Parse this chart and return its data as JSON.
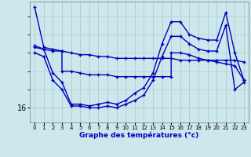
{
  "xlabel": "Graphe des températures (°c)",
  "background_color": "#cce8ec",
  "grid_color": "#aaccd0",
  "line_color": "#0000bb",
  "x_ticks": [
    0,
    1,
    2,
    3,
    4,
    5,
    6,
    7,
    8,
    9,
    10,
    11,
    12,
    13,
    14,
    15,
    16,
    17,
    18,
    19,
    20,
    21,
    22,
    23
  ],
  "ylim": [
    15.2,
    21.8
  ],
  "ytick_val": 16,
  "series1_x": [
    0,
    1,
    2,
    3,
    4,
    5,
    6,
    7,
    8,
    9,
    10,
    11,
    12,
    13,
    14,
    15,
    16,
    17,
    18,
    19,
    20,
    21,
    22,
    23
  ],
  "series1_y": [
    21.5,
    19.3,
    19.2,
    19.1,
    19.0,
    18.9,
    18.9,
    18.8,
    18.8,
    18.7,
    18.7,
    18.7,
    18.7,
    18.7,
    18.7,
    18.7,
    18.6,
    18.6,
    18.6,
    18.6,
    18.6,
    18.6,
    18.6,
    18.5
  ],
  "series2_x": [
    0,
    1,
    2,
    3,
    3,
    4,
    5,
    6,
    7,
    8,
    9,
    10,
    11,
    12,
    13,
    14,
    15,
    15,
    16,
    17,
    18,
    19,
    20,
    21,
    22,
    23
  ],
  "series2_y": [
    19.4,
    19.2,
    19.1,
    19.1,
    18.0,
    18.0,
    17.9,
    17.8,
    17.8,
    17.8,
    17.7,
    17.7,
    17.7,
    17.7,
    17.7,
    17.7,
    17.7,
    19.0,
    19.0,
    18.9,
    18.7,
    18.6,
    18.5,
    18.4,
    18.3,
    17.5
  ],
  "series3_x": [
    0,
    1,
    2,
    3,
    4,
    5,
    6,
    7,
    8,
    9,
    10,
    11,
    12,
    13,
    14,
    15,
    16,
    17,
    18,
    19,
    20,
    21,
    22,
    23
  ],
  "series3_y": [
    19.3,
    19.2,
    17.9,
    17.4,
    16.2,
    16.2,
    16.1,
    16.2,
    16.3,
    16.2,
    16.4,
    16.8,
    17.1,
    17.9,
    19.5,
    20.7,
    20.7,
    20.0,
    19.8,
    19.7,
    19.7,
    21.2,
    19.0,
    17.5
  ],
  "series4_x": [
    0,
    1,
    2,
    3,
    4,
    5,
    6,
    7,
    8,
    9,
    10,
    11,
    12,
    13,
    14,
    15,
    16,
    17,
    18,
    19,
    20,
    21,
    22,
    23
  ],
  "series4_y": [
    19.0,
    18.8,
    17.5,
    17.0,
    16.1,
    16.1,
    16.0,
    16.0,
    16.1,
    16.0,
    16.2,
    16.4,
    16.7,
    17.5,
    18.8,
    19.9,
    19.9,
    19.5,
    19.2,
    19.1,
    19.1,
    20.5,
    17.0,
    17.4
  ]
}
